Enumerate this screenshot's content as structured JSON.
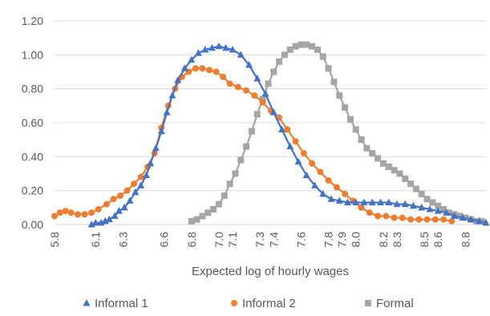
{
  "chart_data": {
    "type": "line",
    "xlabel": "Expected log of hourly wages",
    "ylabel": "",
    "xlim": [
      5.8,
      8.95
    ],
    "ylim": [
      0,
      1.2
    ],
    "y_ticks": [
      "0.00",
      "0.20",
      "0.40",
      "0.60",
      "0.80",
      "1.00",
      "1.20"
    ],
    "y_tick_values": [
      0,
      0.2,
      0.4,
      0.6,
      0.8,
      1.0,
      1.2
    ],
    "x_tick_labels": [
      "5.8",
      "6.1",
      "6.3",
      "6.6",
      "6.8",
      "7.0",
      "7.1",
      "7.3",
      "7.4",
      "7.6",
      "7.8",
      "7.9",
      "8.0",
      "8.2",
      "8.3",
      "8.5",
      "8.6",
      "8.8"
    ],
    "x_tick_values": [
      5.8,
      6.1,
      6.3,
      6.6,
      6.8,
      7.0,
      7.1,
      7.3,
      7.4,
      7.6,
      7.8,
      7.9,
      8.0,
      8.2,
      8.3,
      8.5,
      8.6,
      8.8
    ],
    "grid": "horizontal",
    "legend_position": "bottom",
    "series": [
      {
        "name": "Informal 1",
        "color": "#4472C4",
        "marker": "triangle",
        "points": [
          [
            6.07,
            0.0
          ],
          [
            6.1,
            0.01
          ],
          [
            6.14,
            0.01
          ],
          [
            6.17,
            0.02
          ],
          [
            6.2,
            0.03
          ],
          [
            6.24,
            0.05
          ],
          [
            6.27,
            0.08
          ],
          [
            6.31,
            0.1
          ],
          [
            6.35,
            0.14
          ],
          [
            6.39,
            0.19
          ],
          [
            6.43,
            0.23
          ],
          [
            6.47,
            0.29
          ],
          [
            6.5,
            0.36
          ],
          [
            6.54,
            0.45
          ],
          [
            6.58,
            0.55
          ],
          [
            6.62,
            0.66
          ],
          [
            6.66,
            0.76
          ],
          [
            6.7,
            0.85
          ],
          [
            6.75,
            0.92
          ],
          [
            6.8,
            0.97
          ],
          [
            6.85,
            1.01
          ],
          [
            6.9,
            1.03
          ],
          [
            6.95,
            1.04
          ],
          [
            7.0,
            1.05
          ],
          [
            7.05,
            1.04
          ],
          [
            7.1,
            1.03
          ],
          [
            7.16,
            1.0
          ],
          [
            7.22,
            0.94
          ],
          [
            7.28,
            0.86
          ],
          [
            7.34,
            0.77
          ],
          [
            7.4,
            0.66
          ],
          [
            7.46,
            0.56
          ],
          [
            7.52,
            0.46
          ],
          [
            7.58,
            0.37
          ],
          [
            7.64,
            0.29
          ],
          [
            7.7,
            0.23
          ],
          [
            7.76,
            0.18
          ],
          [
            7.82,
            0.15
          ],
          [
            7.88,
            0.14
          ],
          [
            7.94,
            0.13
          ],
          [
            8.0,
            0.13
          ],
          [
            8.06,
            0.13
          ],
          [
            8.12,
            0.13
          ],
          [
            8.18,
            0.13
          ],
          [
            8.24,
            0.13
          ],
          [
            8.3,
            0.12
          ],
          [
            8.36,
            0.12
          ],
          [
            8.42,
            0.11
          ],
          [
            8.48,
            0.1
          ],
          [
            8.54,
            0.09
          ],
          [
            8.6,
            0.08
          ],
          [
            8.66,
            0.07
          ],
          [
            8.72,
            0.05
          ],
          [
            8.78,
            0.04
          ],
          [
            8.84,
            0.03
          ],
          [
            8.9,
            0.02
          ],
          [
            8.95,
            0.01
          ]
        ]
      },
      {
        "name": "Informal 2",
        "color": "#ED7D31",
        "marker": "circle",
        "points": [
          [
            5.8,
            0.05
          ],
          [
            5.84,
            0.07
          ],
          [
            5.88,
            0.08
          ],
          [
            5.92,
            0.07
          ],
          [
            5.97,
            0.06
          ],
          [
            6.02,
            0.06
          ],
          [
            6.07,
            0.07
          ],
          [
            6.12,
            0.09
          ],
          [
            6.18,
            0.12
          ],
          [
            6.23,
            0.15
          ],
          [
            6.28,
            0.17
          ],
          [
            6.33,
            0.2
          ],
          [
            6.38,
            0.24
          ],
          [
            6.43,
            0.28
          ],
          [
            6.48,
            0.34
          ],
          [
            6.53,
            0.42
          ],
          [
            6.58,
            0.57
          ],
          [
            6.63,
            0.7
          ],
          [
            6.68,
            0.8
          ],
          [
            6.73,
            0.87
          ],
          [
            6.78,
            0.9
          ],
          [
            6.83,
            0.92
          ],
          [
            6.88,
            0.92
          ],
          [
            6.93,
            0.91
          ],
          [
            6.98,
            0.9
          ],
          [
            7.03,
            0.87
          ],
          [
            7.08,
            0.83
          ],
          [
            7.14,
            0.81
          ],
          [
            7.2,
            0.79
          ],
          [
            7.26,
            0.76
          ],
          [
            7.32,
            0.72
          ],
          [
            7.38,
            0.67
          ],
          [
            7.44,
            0.63
          ],
          [
            7.5,
            0.56
          ],
          [
            7.56,
            0.49
          ],
          [
            7.62,
            0.42
          ],
          [
            7.68,
            0.36
          ],
          [
            7.74,
            0.31
          ],
          [
            7.8,
            0.26
          ],
          [
            7.86,
            0.22
          ],
          [
            7.92,
            0.18
          ],
          [
            7.98,
            0.14
          ],
          [
            8.04,
            0.1
          ],
          [
            8.1,
            0.07
          ],
          [
            8.16,
            0.05
          ],
          [
            8.22,
            0.05
          ],
          [
            8.28,
            0.04
          ],
          [
            8.34,
            0.04
          ],
          [
            8.4,
            0.03
          ],
          [
            8.46,
            0.03
          ],
          [
            8.52,
            0.03
          ],
          [
            8.58,
            0.03
          ],
          [
            8.64,
            0.03
          ],
          [
            8.7,
            0.02
          ]
        ]
      },
      {
        "name": "Formal",
        "color": "#A5A5A5",
        "marker": "square",
        "points": [
          [
            6.8,
            0.02
          ],
          [
            6.84,
            0.03
          ],
          [
            6.88,
            0.05
          ],
          [
            6.92,
            0.07
          ],
          [
            6.96,
            0.09
          ],
          [
            7.0,
            0.12
          ],
          [
            7.04,
            0.17
          ],
          [
            7.08,
            0.24
          ],
          [
            7.12,
            0.3
          ],
          [
            7.16,
            0.38
          ],
          [
            7.2,
            0.46
          ],
          [
            7.24,
            0.55
          ],
          [
            7.28,
            0.65
          ],
          [
            7.32,
            0.74
          ],
          [
            7.36,
            0.83
          ],
          [
            7.4,
            0.9
          ],
          [
            7.44,
            0.96
          ],
          [
            7.48,
            1.0
          ],
          [
            7.52,
            1.03
          ],
          [
            7.56,
            1.05
          ],
          [
            7.6,
            1.06
          ],
          [
            7.64,
            1.06
          ],
          [
            7.68,
            1.05
          ],
          [
            7.72,
            1.03
          ],
          [
            7.76,
            0.99
          ],
          [
            7.8,
            0.92
          ],
          [
            7.84,
            0.84
          ],
          [
            7.88,
            0.76
          ],
          [
            7.92,
            0.69
          ],
          [
            7.96,
            0.62
          ],
          [
            8.0,
            0.56
          ],
          [
            8.04,
            0.5
          ],
          [
            8.08,
            0.45
          ],
          [
            8.12,
            0.42
          ],
          [
            8.16,
            0.39
          ],
          [
            8.2,
            0.36
          ],
          [
            8.24,
            0.34
          ],
          [
            8.28,
            0.32
          ],
          [
            8.32,
            0.3
          ],
          [
            8.36,
            0.27
          ],
          [
            8.4,
            0.24
          ],
          [
            8.44,
            0.21
          ],
          [
            8.48,
            0.18
          ],
          [
            8.52,
            0.15
          ],
          [
            8.56,
            0.13
          ],
          [
            8.6,
            0.11
          ],
          [
            8.64,
            0.09
          ],
          [
            8.68,
            0.07
          ],
          [
            8.72,
            0.06
          ],
          [
            8.76,
            0.05
          ],
          [
            8.8,
            0.04
          ],
          [
            8.84,
            0.03
          ],
          [
            8.88,
            0.02
          ],
          [
            8.92,
            0.02
          ]
        ]
      }
    ]
  }
}
